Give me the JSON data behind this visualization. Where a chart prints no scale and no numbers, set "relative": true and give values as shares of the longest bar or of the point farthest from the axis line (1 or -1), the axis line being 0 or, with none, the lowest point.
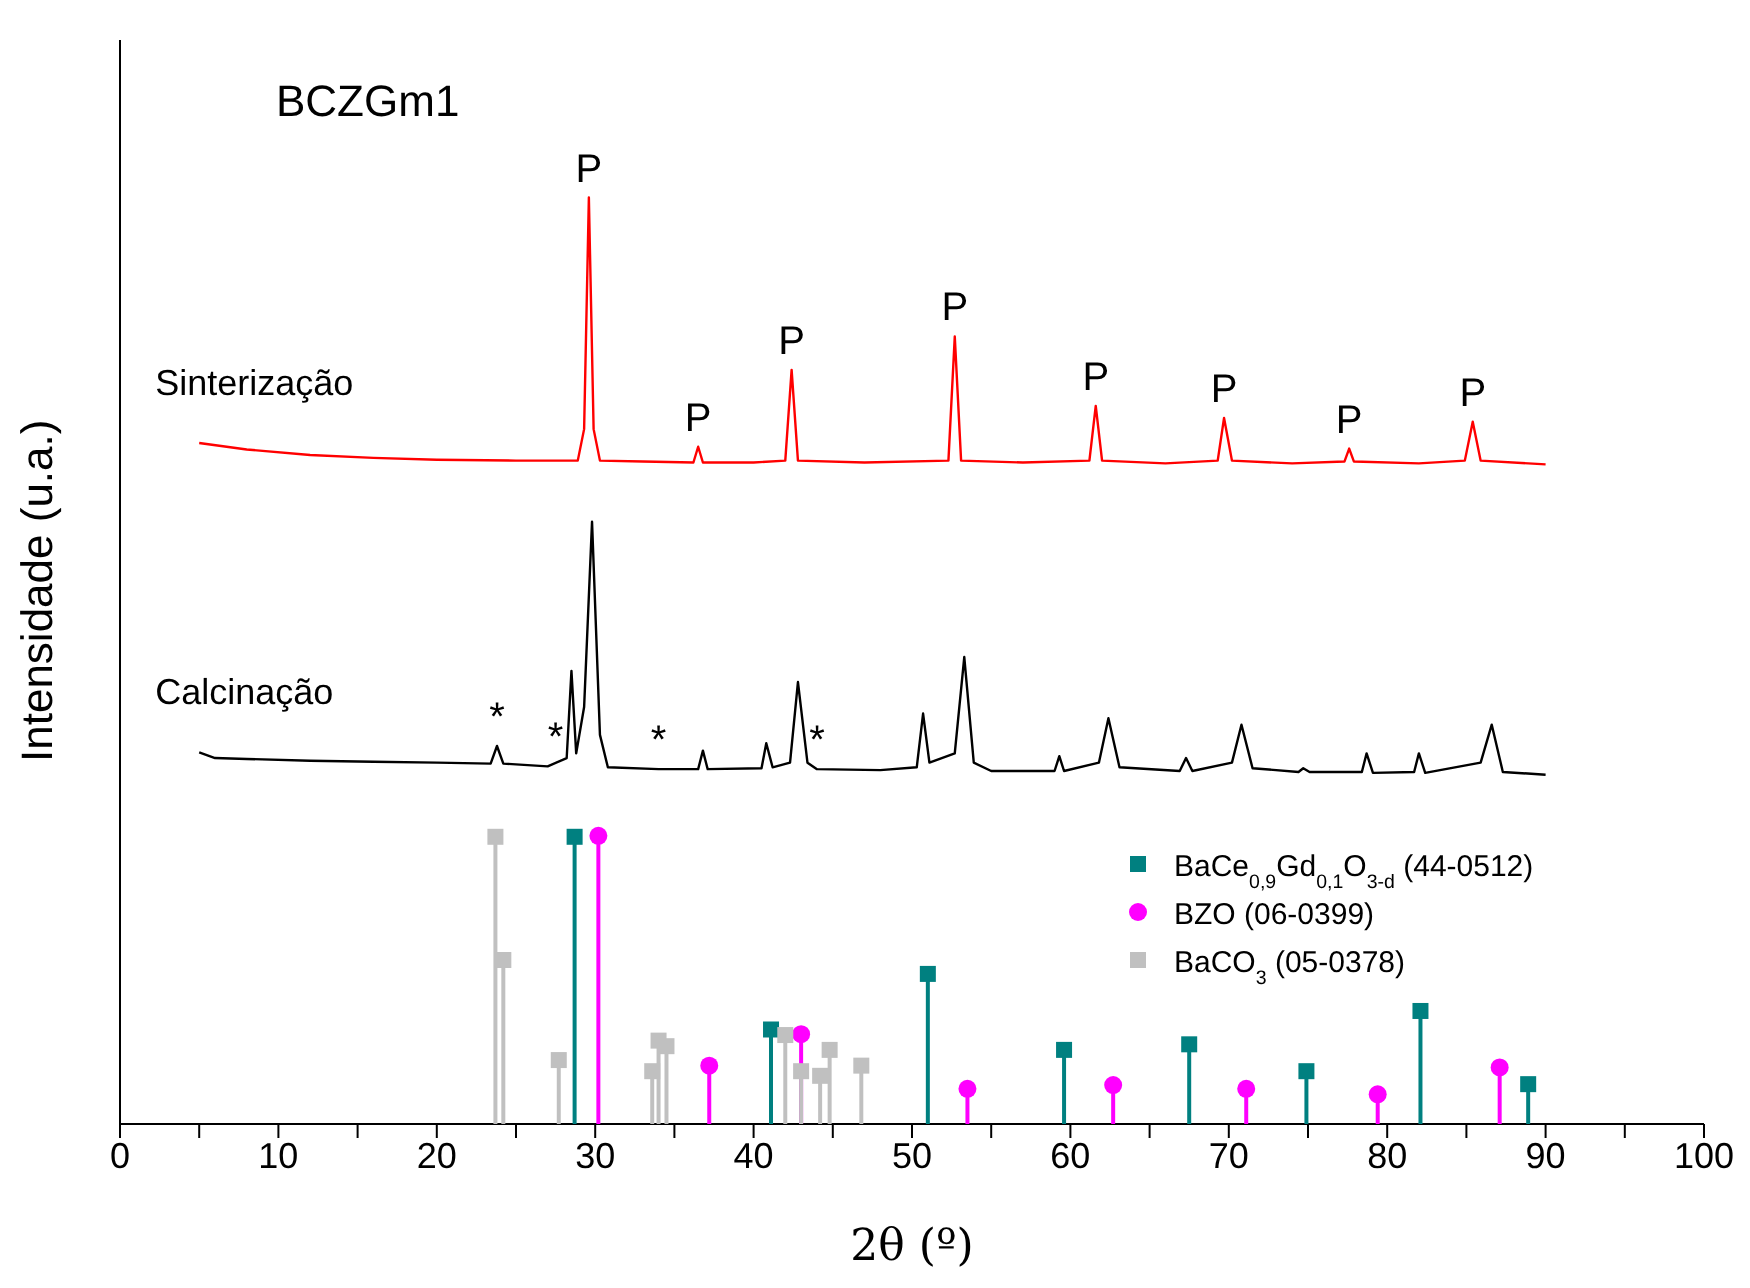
{
  "chart_data": {
    "type": "line",
    "relative": true,
    "xlabel": "2θ (º)",
    "ylabel": "Intensidade (u.a.)",
    "xlim": [
      0,
      100
    ],
    "xticks": [
      0,
      {
        "value": 5,
        "label": null
      },
      10,
      {
        "value": 15,
        "label": null
      },
      20,
      {
        "value": 25,
        "label": null
      },
      30,
      {
        "value": 35,
        "label": null
      },
      40,
      {
        "value": 45,
        "label": null
      },
      50,
      {
        "value": 55,
        "label": null
      },
      60,
      {
        "value": 65,
        "label": null
      },
      70,
      {
        "value": 75,
        "label": null
      },
      80,
      {
        "value": 85,
        "label": null
      },
      90,
      {
        "value": 95,
        "label": null
      },
      100
    ],
    "legend": "right",
    "marker": "none",
    "line_style": "solid",
    "series": [
      {
        "name": "Sinterização",
        "color": "#ff0000",
        "x": [
          5,
          8,
          12,
          16,
          20,
          25,
          28.9,
          29.3,
          29.6,
          29.9,
          30.3,
          33,
          36.2,
          36.5,
          36.8,
          40,
          42.0,
          42.4,
          42.8,
          47,
          52.3,
          52.7,
          53.1,
          57,
          61.2,
          61.6,
          62.0,
          66,
          69.3,
          69.7,
          70.2,
          74,
          77.3,
          77.6,
          77.9,
          82,
          84.9,
          85.4,
          85.9,
          90
        ],
        "values": [
          0.735,
          0.728,
          0.722,
          0.719,
          0.717,
          0.716,
          0.716,
          0.75,
          1.0,
          0.75,
          0.716,
          0.715,
          0.714,
          0.731,
          0.714,
          0.714,
          0.716,
          0.814,
          0.716,
          0.714,
          0.716,
          0.85,
          0.716,
          0.714,
          0.716,
          0.775,
          0.716,
          0.713,
          0.716,
          0.762,
          0.716,
          0.713,
          0.715,
          0.729,
          0.715,
          0.713,
          0.716,
          0.758,
          0.716,
          0.712
        ]
      },
      {
        "name": "Calcinação",
        "color": "#000000",
        "x": [
          5,
          6,
          8,
          12,
          16,
          20,
          23.4,
          23.8,
          24.2,
          27,
          28.2,
          28.5,
          28.8,
          29.3,
          29.8,
          30.3,
          30.8,
          34,
          36.5,
          36.8,
          37.1,
          40.5,
          40.8,
          41.2,
          42.3,
          42.8,
          43.4,
          44,
          48,
          50.3,
          50.7,
          51.1,
          52.7,
          53.3,
          53.9,
          55,
          59,
          59.3,
          59.6,
          61.8,
          62.4,
          63.1,
          66.9,
          67.3,
          67.7,
          70.2,
          70.8,
          71.5,
          74.4,
          74.7,
          75.1,
          78.4,
          78.7,
          79.1,
          81.7,
          82.0,
          82.4,
          85.9,
          86.6,
          87.3,
          90
        ],
        "values": [
          0.401,
          0.395,
          0.394,
          0.392,
          0.391,
          0.39,
          0.389,
          0.408,
          0.389,
          0.386,
          0.395,
          0.489,
          0.4,
          0.45,
          0.65,
          0.42,
          0.385,
          0.383,
          0.383,
          0.403,
          0.383,
          0.384,
          0.411,
          0.385,
          0.39,
          0.477,
          0.39,
          0.383,
          0.382,
          0.385,
          0.443,
          0.39,
          0.4,
          0.504,
          0.39,
          0.381,
          0.381,
          0.397,
          0.381,
          0.39,
          0.438,
          0.385,
          0.381,
          0.395,
          0.381,
          0.39,
          0.431,
          0.384,
          0.38,
          0.384,
          0.38,
          0.38,
          0.4,
          0.379,
          0.38,
          0.4,
          0.379,
          0.39,
          0.431,
          0.38,
          0.377
        ]
      },
      {
        "name": "BaCe$_{0,9}$Gd$_{0,1}$O$_{3-d}$ (44-0512)",
        "type": "lollipop",
        "marker": "square",
        "color": "#008080",
        "x": [
          28.7,
          41.1,
          51.0,
          59.6,
          67.5,
          74.9,
          82.1,
          88.9
        ],
        "values": [
          0.31,
          0.102,
          0.162,
          0.08,
          0.086,
          0.057,
          0.122,
          0.043
        ]
      },
      {
        "name": "BZO (06-0399)",
        "type": "lollipop",
        "marker": "circle",
        "color": "#ff00ff",
        "x": [
          30.2,
          37.2,
          43.0,
          53.5,
          62.7,
          71.1,
          79.4,
          87.1
        ],
        "values": [
          0.311,
          0.063,
          0.097,
          0.038,
          0.042,
          0.038,
          0.032,
          0.061
        ]
      },
      {
        "name": "BaCO$_{3}$ (05-0378)",
        "type": "lollipop",
        "marker": "square",
        "color": "#c0c0c0",
        "x": [
          23.7,
          24.2,
          27.7,
          33.6,
          34.0,
          34.5,
          42.0,
          43.0,
          44.2,
          44.8,
          46.8
        ],
        "values": [
          0.31,
          0.177,
          0.069,
          0.057,
          0.09,
          0.084,
          0.096,
          0.057,
          0.052,
          0.08,
          0.063
        ]
      }
    ],
    "annotations": [
      "BCZGm1",
      {
        "text": "P",
        "x": 29.6,
        "y": 1.0
      },
      {
        "text": "P",
        "x": 36.5,
        "y": 0.731
      },
      {
        "text": "P",
        "x": 42.4,
        "y": 0.814
      },
      {
        "text": "P",
        "x": 52.7,
        "y": 0.85
      },
      {
        "text": "P",
        "x": 61.6,
        "y": 0.775
      },
      {
        "text": "P",
        "x": 69.7,
        "y": 0.762
      },
      {
        "text": "P",
        "x": 77.6,
        "y": 0.729
      },
      {
        "text": "P",
        "x": 85.4,
        "y": 0.758
      },
      {
        "text": "*",
        "x": 23.8,
        "y": 0.408
      },
      {
        "text": "*",
        "x": 27.5,
        "y": 0.386
      },
      {
        "text": "*",
        "x": 34.0,
        "y": 0.383
      },
      {
        "text": "*",
        "x": 44.0,
        "y": 0.383
      }
    ]
  }
}
